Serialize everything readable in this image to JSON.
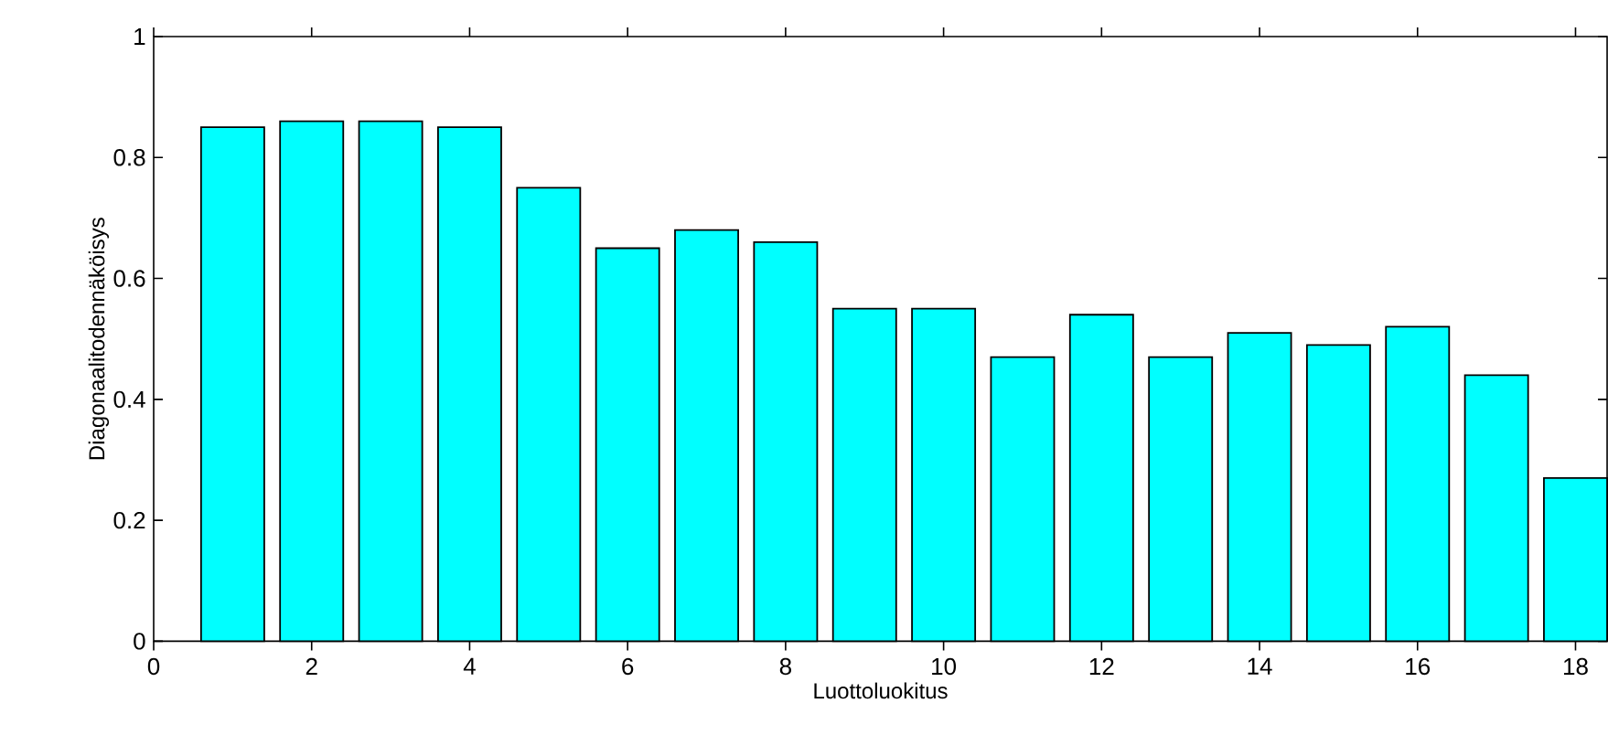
{
  "chart_data": {
    "type": "bar",
    "xlabel": "Luottoluokitus",
    "ylabel": "Diagonaalitodennäköisys",
    "x": [
      1,
      2,
      3,
      4,
      5,
      6,
      7,
      8,
      9,
      10,
      11,
      12,
      13,
      14,
      15,
      16,
      17,
      18
    ],
    "values": [
      0.85,
      0.86,
      0.86,
      0.85,
      0.75,
      0.65,
      0.68,
      0.66,
      0.55,
      0.55,
      0.47,
      0.54,
      0.47,
      0.51,
      0.49,
      0.52,
      0.44,
      0.27
    ],
    "color": "#00ffff",
    "xlim": [
      0,
      18.4
    ],
    "xticks": [
      0,
      2,
      4,
      6,
      8,
      10,
      12,
      14,
      16,
      18
    ],
    "ylim": [
      0,
      1
    ],
    "yticks": [
      0,
      0.2,
      0.4,
      0.6,
      0.8,
      1
    ],
    "grid": false
  }
}
